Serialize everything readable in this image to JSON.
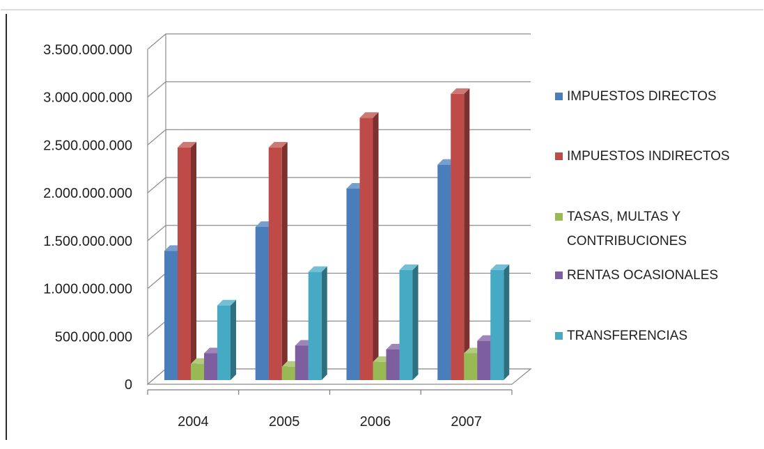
{
  "chart_data": {
    "type": "bar",
    "categories": [
      "2004",
      "2005",
      "2006",
      "2007"
    ],
    "series": [
      {
        "name": "IMPUESTOS DIRECTOS",
        "color": "#4a7ebb",
        "values": [
          1350000000,
          1600000000,
          2000000000,
          2250000000
        ]
      },
      {
        "name": "IMPUESTOS INDIRECTOS",
        "color": "#be4b48",
        "values": [
          2430000000,
          2430000000,
          2740000000,
          2990000000
        ]
      },
      {
        "name": "TASAS, MULTAS Y CONTRIBUCIONES",
        "color": "#98b954",
        "values": [
          170000000,
          140000000,
          190000000,
          280000000
        ]
      },
      {
        "name": "RENTAS OCASIONALES",
        "color": "#7d5fa0",
        "values": [
          280000000,
          360000000,
          320000000,
          410000000
        ]
      },
      {
        "name": "TRANSFERENCIAS",
        "color": "#46aac5",
        "values": [
          780000000,
          1130000000,
          1150000000,
          1150000000
        ]
      }
    ],
    "y_ticks": [
      "0",
      "500.000.000",
      "1.000.000.000",
      "1.500.000.000",
      "2.000.000.000",
      "2.500.000.000",
      "3.000.000.000",
      "3.500.000.000"
    ],
    "ylim": [
      0,
      3500000000
    ],
    "grid": true,
    "legend_position": "right",
    "title": "",
    "xlabel": "",
    "ylabel": ""
  }
}
